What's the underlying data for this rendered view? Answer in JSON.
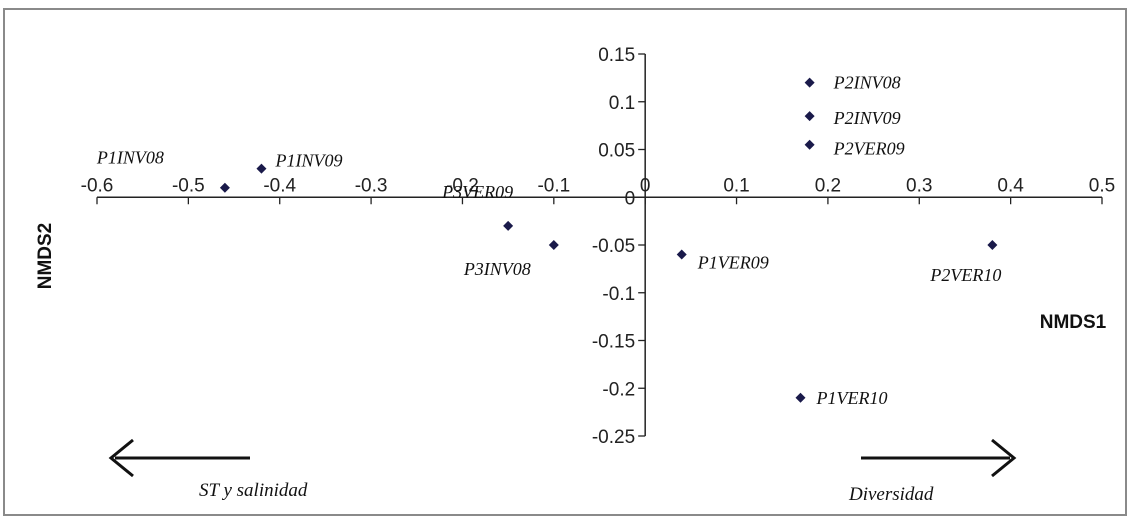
{
  "chart_data": {
    "type": "scatter",
    "xlabel": "NMDS1",
    "ylabel": "NMDS2",
    "xlim": [
      -0.6,
      0.5
    ],
    "ylim": [
      -0.25,
      0.15
    ],
    "x_ticks": [
      "-0.6",
      "-0.5",
      "-0.4",
      "-0.3",
      "-0.2",
      "-0.1",
      "0",
      "0.1",
      "0.2",
      "0.3",
      "0.4",
      "0.5"
    ],
    "y_ticks": [
      "0.15",
      "0.1",
      "0.05",
      "0",
      "-0.05",
      "-0.1",
      "-0.15",
      "-0.2",
      "-0.25"
    ],
    "grid": false,
    "marker_color": "#1a1a4a",
    "points": [
      {
        "label": "P1INV08",
        "x": -0.46,
        "y": 0.01
      },
      {
        "label": "P1INV09",
        "x": -0.42,
        "y": 0.03
      },
      {
        "label": "P3VER09",
        "x": -0.15,
        "y": -0.03
      },
      {
        "label": "P3INV08",
        "x": -0.1,
        "y": -0.05
      },
      {
        "label": "P1VER09",
        "x": 0.04,
        "y": -0.06
      },
      {
        "label": "P2INV08",
        "x": 0.18,
        "y": 0.12
      },
      {
        "label": "P2INV09",
        "x": 0.18,
        "y": 0.085
      },
      {
        "label": "P2VER09",
        "x": 0.18,
        "y": 0.055
      },
      {
        "label": "P2VER10",
        "x": 0.38,
        "y": -0.05
      },
      {
        "label": "P1VER10",
        "x": 0.17,
        "y": -0.21
      }
    ],
    "annotations": [
      {
        "text": "ST y salinidad",
        "arrow": "left"
      },
      {
        "text": "Diversidad",
        "arrow": "right"
      }
    ]
  }
}
